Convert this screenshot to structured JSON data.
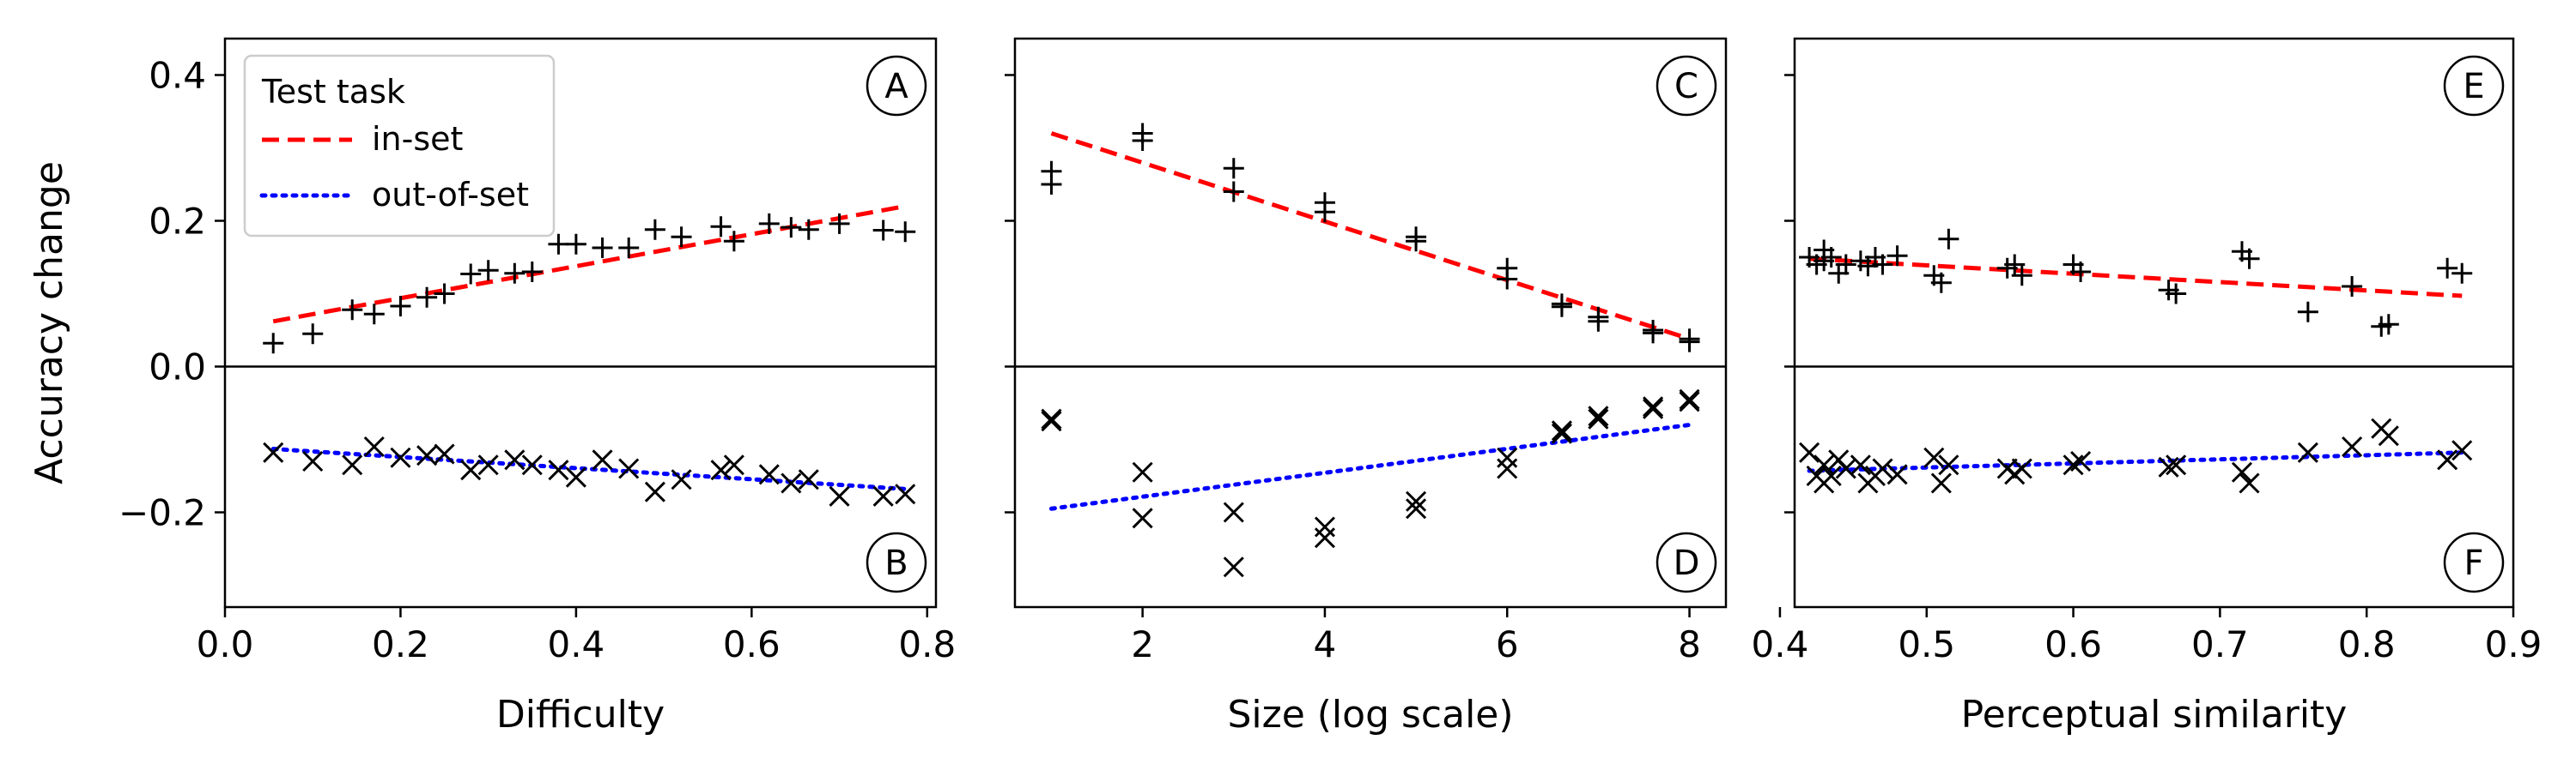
{
  "figure": {
    "ylabel": "Accuracy change",
    "legend": {
      "title": "Test task",
      "placement": "top-left of panel A",
      "entries": [
        {
          "label": "in-set",
          "color": "#ff0000",
          "style": "dashed"
        },
        {
          "label": "out-of-set",
          "color": "#0000ff",
          "style": "dotted"
        }
      ]
    },
    "ylim": [
      -0.33,
      0.45
    ],
    "yticks": [
      -0.2,
      0.0,
      0.2,
      0.4
    ],
    "ytick_labels": [
      "−0.2",
      "0.0",
      "0.2",
      "0.4"
    ],
    "zero_line": true
  },
  "chart_data": [
    {
      "type": "scatter",
      "xlabel": "Difficulty",
      "xlim": [
        0.0,
        0.81
      ],
      "xticks": [
        0.0,
        0.2,
        0.4,
        0.6,
        0.8
      ],
      "xtick_labels": [
        "0.0",
        "0.2",
        "0.4",
        "0.6",
        "0.8"
      ],
      "panel_labels": {
        "top": "A",
        "bottom": "B"
      },
      "in_set": {
        "marker": "+",
        "x": [
          0.055,
          0.1,
          0.145,
          0.17,
          0.2,
          0.23,
          0.25,
          0.28,
          0.3,
          0.33,
          0.35,
          0.38,
          0.4,
          0.43,
          0.46,
          0.49,
          0.52,
          0.565,
          0.58,
          0.62,
          0.645,
          0.665,
          0.7,
          0.75,
          0.775
        ],
        "y": [
          0.032,
          0.045,
          0.078,
          0.072,
          0.083,
          0.095,
          0.1,
          0.127,
          0.132,
          0.128,
          0.13,
          0.168,
          0.168,
          0.163,
          0.163,
          0.188,
          0.178,
          0.192,
          0.172,
          0.196,
          0.191,
          0.188,
          0.196,
          0.187,
          0.185
        ],
        "trend": [
          [
            0.055,
            0.062
          ],
          [
            0.775,
            0.22
          ]
        ]
      },
      "out_of_set": {
        "marker": "x",
        "x": [
          0.055,
          0.1,
          0.145,
          0.17,
          0.2,
          0.23,
          0.25,
          0.28,
          0.3,
          0.33,
          0.35,
          0.38,
          0.4,
          0.43,
          0.46,
          0.49,
          0.52,
          0.565,
          0.58,
          0.62,
          0.645,
          0.665,
          0.7,
          0.75,
          0.775
        ],
        "y": [
          -0.118,
          -0.13,
          -0.135,
          -0.11,
          -0.125,
          -0.122,
          -0.12,
          -0.142,
          -0.135,
          -0.128,
          -0.135,
          -0.142,
          -0.152,
          -0.128,
          -0.14,
          -0.172,
          -0.155,
          -0.142,
          -0.135,
          -0.148,
          -0.16,
          -0.155,
          -0.178,
          -0.178,
          -0.175
        ],
        "trend": [
          [
            0.055,
            -0.113
          ],
          [
            0.775,
            -0.168
          ]
        ]
      }
    },
    {
      "type": "scatter",
      "xlabel": "Size (log scale)",
      "xlim": [
        0.6,
        8.4
      ],
      "xticks": [
        2,
        4,
        6,
        8
      ],
      "xtick_labels": [
        "2",
        "4",
        "6",
        "8"
      ],
      "panel_labels": {
        "top": "C",
        "bottom": "D"
      },
      "in_set": {
        "marker": "+",
        "x": [
          1,
          1,
          2,
          2,
          3,
          3,
          4,
          4,
          5,
          5,
          6,
          6,
          6.6,
          6.6,
          7,
          7,
          7.6,
          7.6,
          8,
          8
        ],
        "y": [
          0.25,
          0.268,
          0.31,
          0.32,
          0.24,
          0.272,
          0.212,
          0.225,
          0.172,
          0.178,
          0.12,
          0.135,
          0.082,
          0.086,
          0.062,
          0.068,
          0.046,
          0.05,
          0.034,
          0.038
        ],
        "trend": [
          [
            1,
            0.32
          ],
          [
            8,
            0.038
          ]
        ]
      },
      "out_of_set": {
        "marker": "x",
        "x": [
          1,
          1,
          2,
          2,
          3,
          3,
          4,
          4,
          5,
          5,
          6,
          6,
          6.6,
          6.6,
          7,
          7,
          7.6,
          7.6,
          8,
          8
        ],
        "y": [
          -0.072,
          -0.075,
          -0.145,
          -0.208,
          -0.2,
          -0.275,
          -0.22,
          -0.235,
          -0.185,
          -0.195,
          -0.125,
          -0.14,
          -0.092,
          -0.088,
          -0.068,
          -0.072,
          -0.055,
          -0.058,
          -0.048,
          -0.045
        ],
        "trend": [
          [
            1,
            -0.195
          ],
          [
            8,
            -0.08
          ]
        ]
      }
    },
    {
      "type": "scatter",
      "xlabel": "Perceptual similarity",
      "xlim": [
        0.41,
        0.9
      ],
      "xticks": [
        0.4,
        0.5,
        0.6,
        0.7,
        0.8,
        0.9
      ],
      "xtick_labels": [
        "0.4",
        "0.5",
        "0.6",
        "0.7",
        "0.8",
        "0.9"
      ],
      "panel_labels": {
        "top": "E",
        "bottom": "F"
      },
      "in_set": {
        "marker": "+",
        "x": [
          0.42,
          0.425,
          0.43,
          0.43,
          0.435,
          0.44,
          0.445,
          0.455,
          0.46,
          0.465,
          0.47,
          0.48,
          0.505,
          0.51,
          0.515,
          0.555,
          0.56,
          0.565,
          0.6,
          0.605,
          0.665,
          0.67,
          0.715,
          0.72,
          0.76,
          0.79,
          0.81,
          0.815,
          0.855,
          0.865
        ],
        "y": [
          0.15,
          0.14,
          0.16,
          0.145,
          0.15,
          0.128,
          0.14,
          0.145,
          0.138,
          0.15,
          0.14,
          0.152,
          0.125,
          0.115,
          0.175,
          0.135,
          0.14,
          0.125,
          0.14,
          0.13,
          0.105,
          0.1,
          0.158,
          0.148,
          0.075,
          0.11,
          0.055,
          0.058,
          0.135,
          0.128
        ],
        "trend": [
          [
            0.42,
            0.148
          ],
          [
            0.865,
            0.097
          ]
        ]
      },
      "out_of_set": {
        "marker": "x",
        "x": [
          0.42,
          0.425,
          0.43,
          0.43,
          0.435,
          0.44,
          0.445,
          0.455,
          0.46,
          0.465,
          0.47,
          0.48,
          0.505,
          0.51,
          0.515,
          0.555,
          0.56,
          0.565,
          0.6,
          0.605,
          0.665,
          0.67,
          0.715,
          0.72,
          0.76,
          0.79,
          0.81,
          0.815,
          0.855,
          0.865
        ],
        "y": [
          -0.118,
          -0.15,
          -0.135,
          -0.16,
          -0.15,
          -0.128,
          -0.14,
          -0.135,
          -0.16,
          -0.15,
          -0.14,
          -0.148,
          -0.125,
          -0.16,
          -0.135,
          -0.14,
          -0.148,
          -0.14,
          -0.135,
          -0.13,
          -0.138,
          -0.135,
          -0.145,
          -0.16,
          -0.118,
          -0.11,
          -0.085,
          -0.095,
          -0.128,
          -0.115
        ],
        "trend": [
          [
            0.42,
            -0.143
          ],
          [
            0.865,
            -0.118
          ]
        ]
      }
    }
  ]
}
